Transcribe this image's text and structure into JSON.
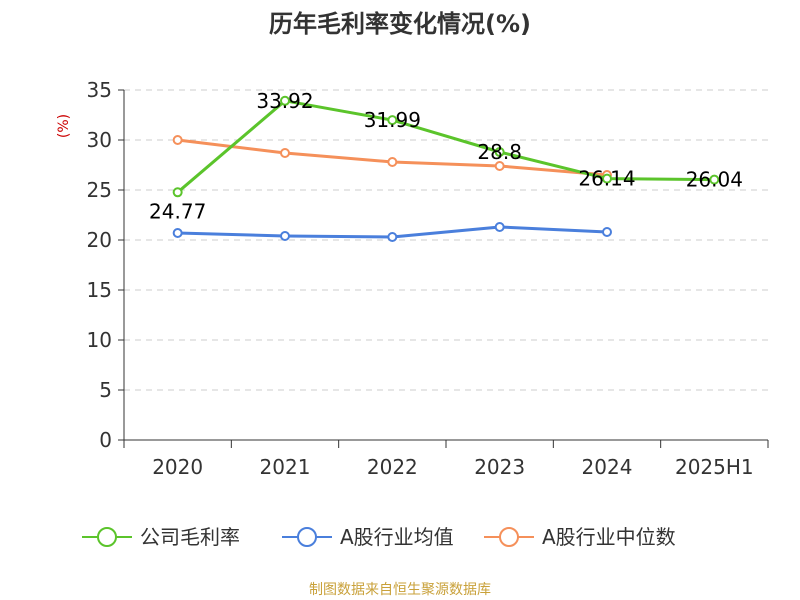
{
  "chart_data": {
    "type": "line",
    "title": "历年毛利率变化情况(%)",
    "ylabel": "(%)",
    "xlabel": "",
    "ylim": [
      0,
      35
    ],
    "yticks": [
      0,
      5,
      10,
      15,
      20,
      25,
      30,
      35
    ],
    "grid": true,
    "legend_position": "bottom",
    "categories": [
      "2020",
      "2021",
      "2022",
      "2023",
      "2024",
      "2025H1"
    ],
    "series": [
      {
        "name": "公司毛利率",
        "color": "#5bc42b",
        "values": [
          24.77,
          33.92,
          31.99,
          28.8,
          26.14,
          26.04
        ],
        "labels": [
          "24.77",
          "33.92",
          "31.99",
          "28.8",
          "26.14",
          "26.04"
        ]
      },
      {
        "name": "A股行业均值",
        "color": "#4a7fdc",
        "values": [
          20.7,
          20.4,
          20.3,
          21.3,
          20.8,
          null
        ]
      },
      {
        "name": "A股行业中位数",
        "color": "#f5905a",
        "values": [
          30.0,
          28.7,
          27.8,
          27.4,
          26.5,
          null
        ]
      }
    ]
  },
  "source": "制图数据来自恒生聚源数据库"
}
